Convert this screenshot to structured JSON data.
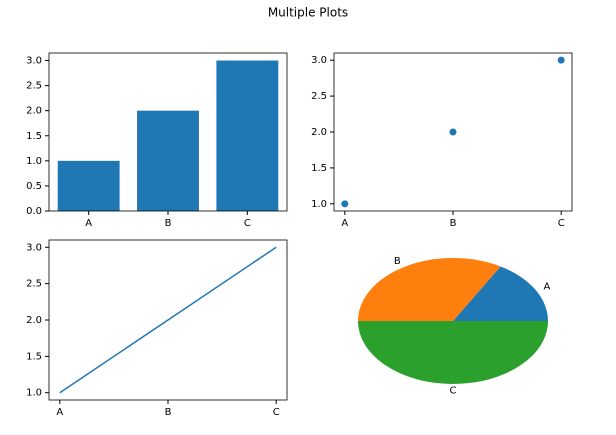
{
  "title": "Multiple Plots",
  "chart_data": [
    {
      "type": "bar",
      "categories": [
        "A",
        "B",
        "C"
      ],
      "values": [
        1,
        2,
        3
      ],
      "color": "#1f77b4",
      "ylim": [
        0,
        3.15
      ],
      "yticks": [
        {
          "value": 0,
          "label": "0.0"
        },
        {
          "value": 0.5,
          "label": "0.5"
        },
        {
          "value": 1,
          "label": "1.0"
        },
        {
          "value": 1.5,
          "label": "1.5"
        },
        {
          "value": 2,
          "label": "2.0"
        },
        {
          "value": 2.5,
          "label": "2.5"
        },
        {
          "value": 3,
          "label": "3.0"
        }
      ]
    },
    {
      "type": "scatter",
      "categories": [
        "A",
        "B",
        "C"
      ],
      "values": [
        1,
        2,
        3
      ],
      "color": "#1f77b4",
      "ylim": [
        0.9,
        3.1
      ],
      "yticks": [
        {
          "value": 1,
          "label": "1.0"
        },
        {
          "value": 1.5,
          "label": "1.5"
        },
        {
          "value": 2,
          "label": "2.0"
        },
        {
          "value": 2.5,
          "label": "2.5"
        },
        {
          "value": 3,
          "label": "3.0"
        }
      ]
    },
    {
      "type": "line",
      "categories": [
        "A",
        "B",
        "C"
      ],
      "values": [
        1,
        2,
        3
      ],
      "color": "#1f77b4",
      "ylim": [
        0.9,
        3.1
      ],
      "yticks": [
        {
          "value": 1,
          "label": "1.0"
        },
        {
          "value": 1.5,
          "label": "1.5"
        },
        {
          "value": 2,
          "label": "2.0"
        },
        {
          "value": 2.5,
          "label": "2.5"
        },
        {
          "value": 3,
          "label": "3.0"
        }
      ]
    },
    {
      "type": "pie",
      "categories": [
        "A",
        "B",
        "C"
      ],
      "values": [
        1,
        2,
        3
      ],
      "colors": [
        "#1f77b4",
        "#ff7f0e",
        "#2ca02c"
      ]
    }
  ]
}
